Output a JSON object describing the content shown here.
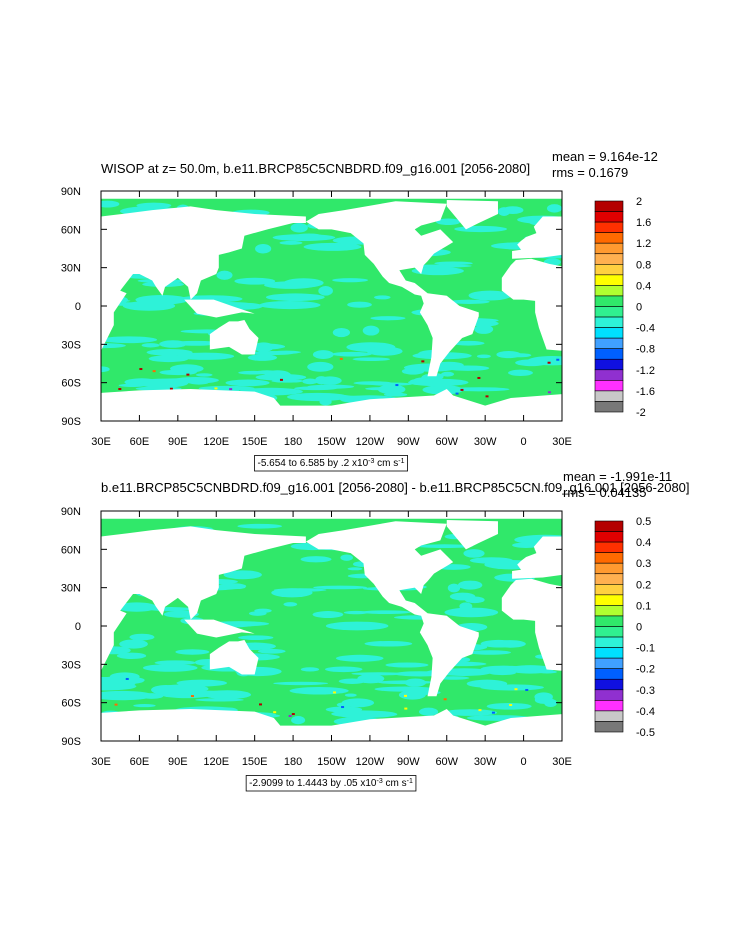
{
  "chart_data": [
    {
      "type": "contour-map",
      "title": "WISOP at z=  50.0m, b.e11.BRCP85C5CNBDRD.f09_g16.001 [2056-2080]",
      "mean": "mean = 9.164e-12",
      "rms": "rms = 0.1679",
      "xlim": [
        30,
        390
      ],
      "xticks": [
        {
          "value": 30,
          "label": "30E"
        },
        {
          "value": 60,
          "label": "60E"
        },
        {
          "value": 90,
          "label": "90E"
        },
        {
          "value": 120,
          "label": "120E"
        },
        {
          "value": 150,
          "label": "150E"
        },
        180,
        {
          "value": 210,
          "label": "150W"
        },
        {
          "value": 240,
          "label": "120W"
        },
        {
          "value": 270,
          "label": "90W"
        },
        {
          "value": 300,
          "label": "60W"
        },
        {
          "value": 330,
          "label": "30W"
        },
        {
          "value": 360,
          "label": "0"
        },
        {
          "value": 390,
          "label": "30E"
        }
      ],
      "ylim": [
        -90,
        90
      ],
      "yticks": [
        {
          "value": 90,
          "label": "90N"
        },
        {
          "value": 60,
          "label": "60N"
        },
        {
          "value": 30,
          "label": "30N"
        },
        0,
        {
          "value": -30,
          "label": "30S"
        },
        {
          "value": -60,
          "label": "60S"
        },
        {
          "value": -90,
          "label": "90S"
        }
      ],
      "colorbar": {
        "levels": [
          2,
          1.6,
          1.2,
          0.8,
          0.4,
          0,
          -0.4,
          -0.8,
          -1.2,
          -1.6,
          -2
        ],
        "colors": [
          "#b40000",
          "#e00000",
          "#ff3000",
          "#ff6a00",
          "#ff9a30",
          "#ffb050",
          "#ffd040",
          "#ffff00",
          "#b0ff30",
          "#30e86a",
          "#30f090",
          "#2ef2d8",
          "#00e0ff",
          "#40a0ff",
          "#0060ff",
          "#1010e0",
          "#9030d0",
          "#ff30ff",
          "#c8c8c8",
          "#787878"
        ]
      },
      "info": {
        "text": "-5.654 to 6.585 by .2 x10",
        "exp": "-3",
        "unit": " cm s",
        "unit_exp": "-1"
      }
    },
    {
      "type": "contour-map",
      "title": "b.e11.BRCP85C5CNBDRD.f09_g16.001 [2056-2080] - b.e11.BRCP85C5CN.f09_g16.001 [2056-2080]",
      "mean": "mean = -1.991e-11",
      "rms": "rms = 0.04135",
      "xlim": [
        30,
        390
      ],
      "xticks": [
        {
          "value": 30,
          "label": "30E"
        },
        {
          "value": 60,
          "label": "60E"
        },
        {
          "value": 90,
          "label": "90E"
        },
        {
          "value": 120,
          "label": "120E"
        },
        {
          "value": 150,
          "label": "150E"
        },
        180,
        {
          "value": 210,
          "label": "150W"
        },
        {
          "value": 240,
          "label": "120W"
        },
        {
          "value": 270,
          "label": "90W"
        },
        {
          "value": 300,
          "label": "60W"
        },
        {
          "value": 330,
          "label": "30W"
        },
        {
          "value": 360,
          "label": "0"
        },
        {
          "value": 390,
          "label": "30E"
        }
      ],
      "ylim": [
        -90,
        90
      ],
      "yticks": [
        {
          "value": 90,
          "label": "90N"
        },
        {
          "value": 60,
          "label": "60N"
        },
        {
          "value": 30,
          "label": "30N"
        },
        0,
        {
          "value": -30,
          "label": "30S"
        },
        {
          "value": -60,
          "label": "60S"
        },
        {
          "value": -90,
          "label": "90S"
        }
      ],
      "colorbar": {
        "levels": [
          0.5,
          0.4,
          0.3,
          0.2,
          0.1,
          0,
          -0.1,
          -0.2,
          -0.3,
          -0.4,
          -0.5
        ],
        "colors": [
          "#b40000",
          "#e00000",
          "#ff3000",
          "#ff6a00",
          "#ff9a30",
          "#ffb050",
          "#ffd040",
          "#ffff00",
          "#b0ff30",
          "#30e86a",
          "#30f090",
          "#2ef2d8",
          "#00e0ff",
          "#40a0ff",
          "#0060ff",
          "#1010e0",
          "#9030d0",
          "#ff30ff",
          "#c8c8c8",
          "#787878"
        ]
      },
      "info": {
        "text": "-2.9099 to 1.4443 by .05 x10",
        "exp": "-3",
        "unit": " cm s",
        "unit_exp": "-1"
      }
    }
  ]
}
